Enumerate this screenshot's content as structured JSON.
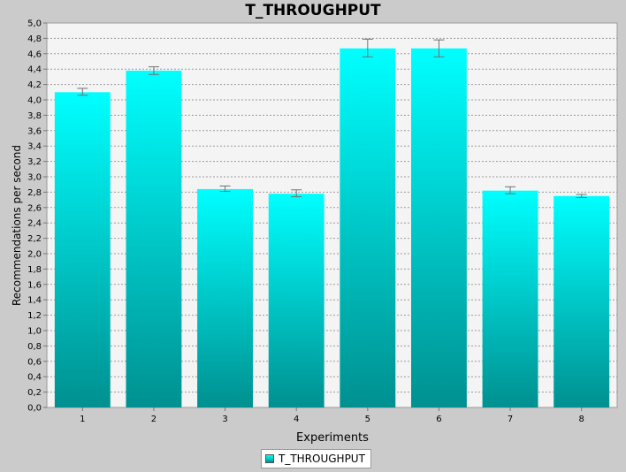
{
  "chart_data": {
    "type": "bar",
    "title": "T_THROUGHPUT",
    "xlabel": "Experiments",
    "ylabel": "Recommendations per second",
    "categories": [
      "1",
      "2",
      "3",
      "4",
      "5",
      "6",
      "7",
      "8"
    ],
    "series": [
      {
        "name": "T_THROUGHPUT",
        "values": [
          4.1,
          4.38,
          2.84,
          2.78,
          4.67,
          4.67,
          2.82,
          2.75
        ],
        "error_low": [
          4.06,
          4.33,
          2.81,
          2.74,
          4.56,
          4.56,
          2.78,
          2.73
        ],
        "error_high": [
          4.15,
          4.43,
          2.88,
          2.83,
          4.79,
          4.78,
          2.87,
          2.77
        ]
      }
    ],
    "ylim": [
      0,
      5.0
    ],
    "ytick_step": 0.2,
    "decimal_separator": ",",
    "grid": true,
    "legend_position": "bottom-center",
    "colors": {
      "bar_top": "#00ffff",
      "bar_bottom": "#009090",
      "plot_background": "#f4f4f4",
      "page_background": "#cbcbcb",
      "grid": "#9a9a9a",
      "error_bar": "#707070"
    }
  }
}
